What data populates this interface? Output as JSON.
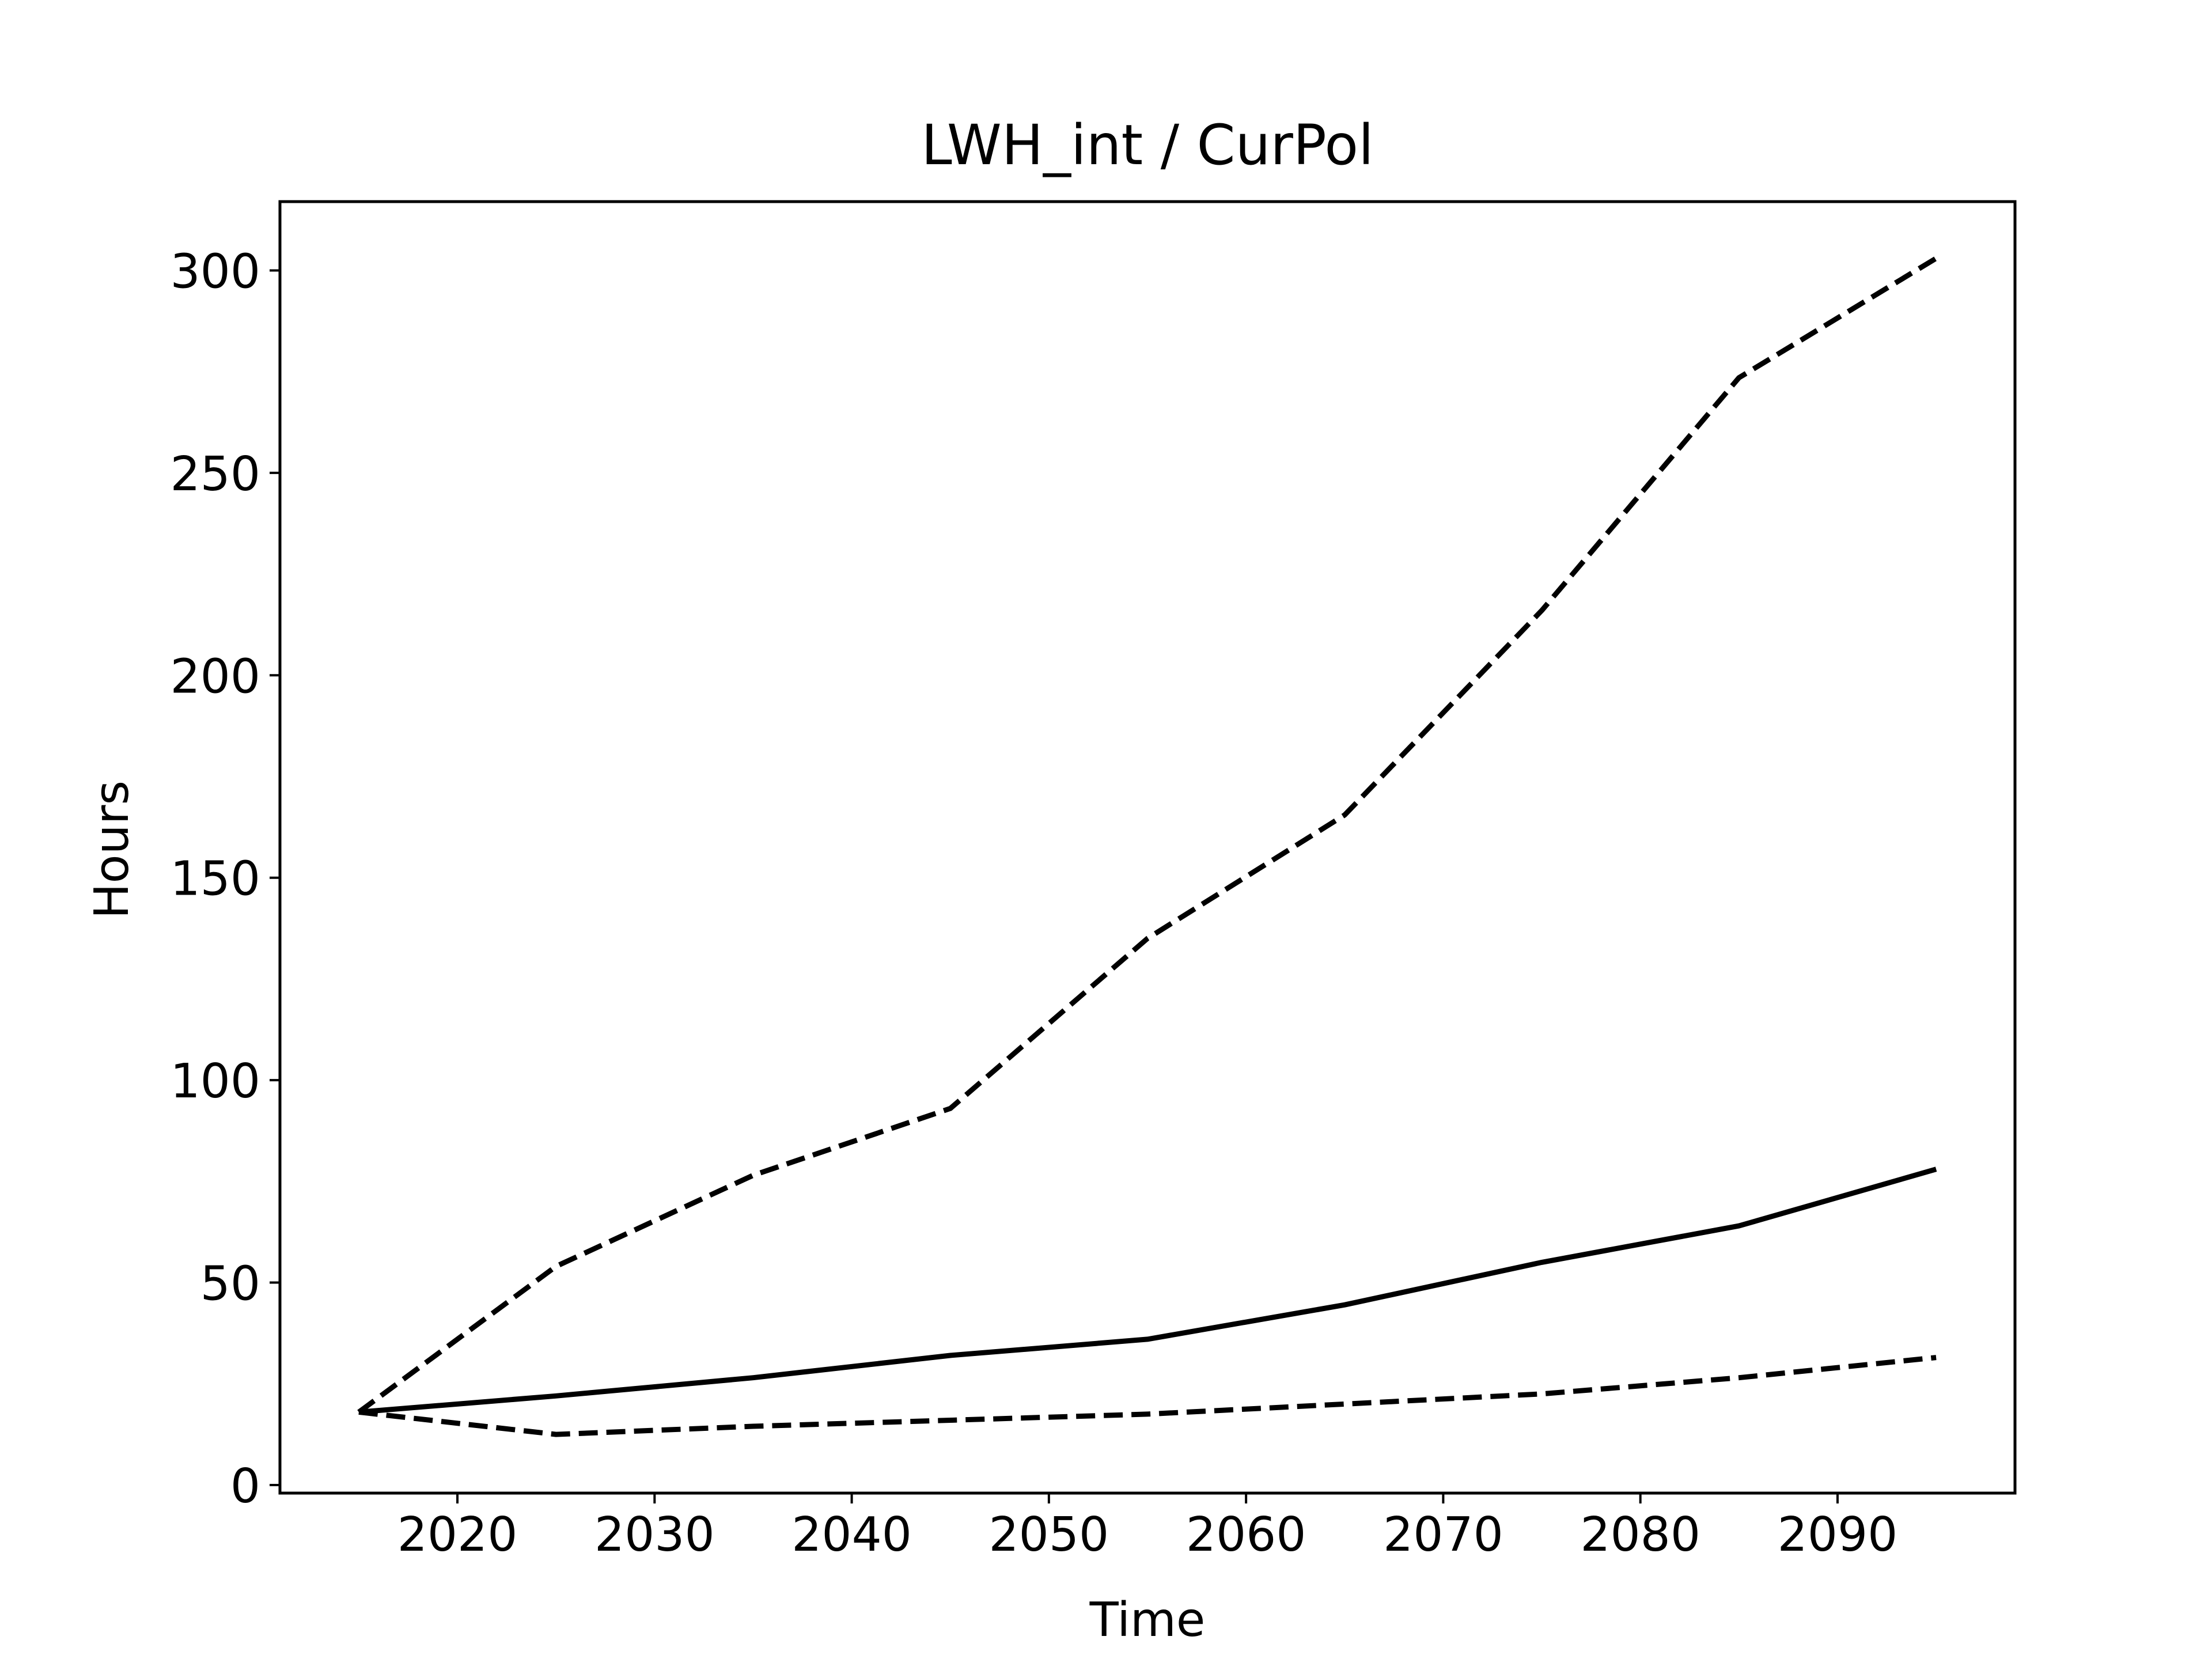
{
  "chart_data": {
    "type": "line",
    "title": "LWH_int / CurPol",
    "xlabel": "Time",
    "ylabel": "Hours",
    "xlim": [
      2011,
      2099
    ],
    "ylim": [
      -2,
      317
    ],
    "xticks": [
      2020,
      2030,
      2040,
      2050,
      2060,
      2070,
      2080,
      2090
    ],
    "yticks": [
      0,
      50,
      100,
      150,
      200,
      250,
      300
    ],
    "grid": false,
    "legend": "none",
    "line_color": "#000000",
    "x": [
      2015,
      2025,
      2035,
      2045,
      2055,
      2065,
      2075,
      2085,
      2095
    ],
    "series": [
      {
        "style": "solid",
        "values": [
          18,
          22,
          26.5,
          32,
          36,
          44.5,
          55,
          64,
          78
        ]
      },
      {
        "style": "dashed",
        "values": [
          18,
          54,
          76.5,
          93,
          135,
          165.5,
          216,
          273.5,
          303
        ]
      },
      {
        "style": "dashed",
        "values": [
          18,
          12.5,
          14.5,
          16,
          17.5,
          20,
          22.5,
          26.5,
          31.5
        ]
      }
    ]
  }
}
